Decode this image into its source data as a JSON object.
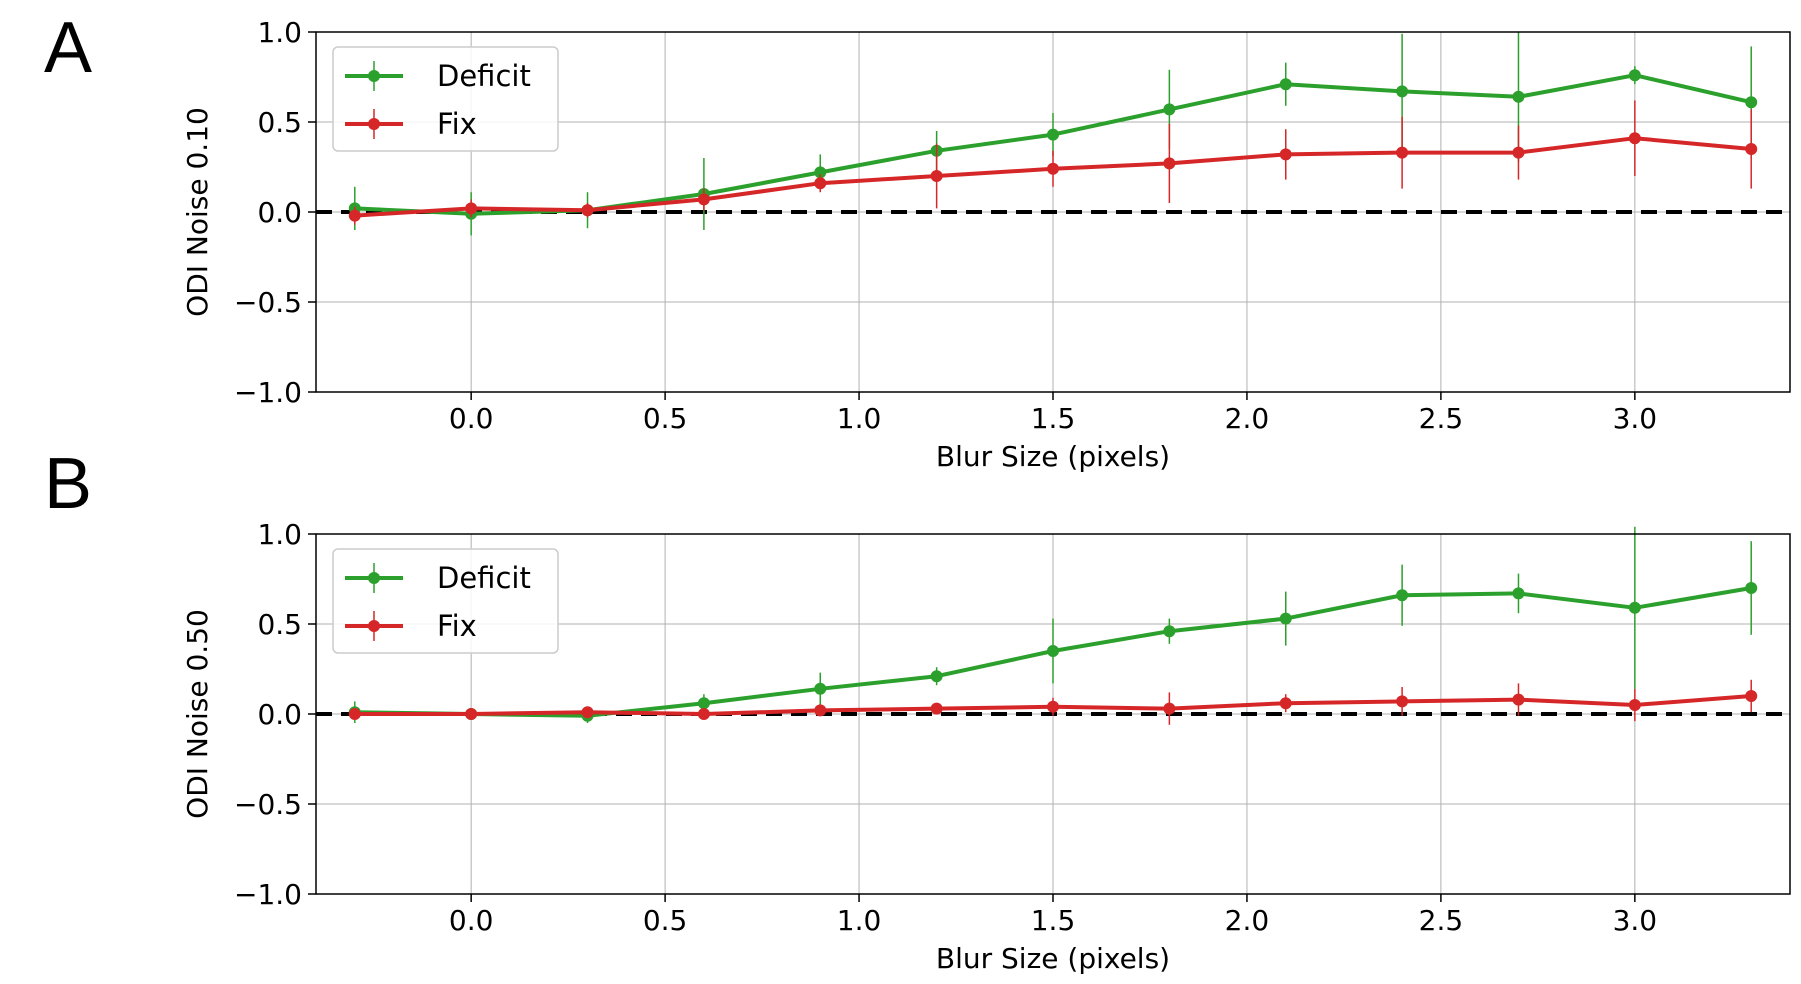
{
  "colors": {
    "deficit": "#2ca02c",
    "fix": "#d62728",
    "grid": "#b0b0b0",
    "zero_line": "#000000"
  },
  "chart_data": [
    {
      "panel_label": "A",
      "type": "line",
      "xlabel": "Blur Size (pixels)",
      "ylabel": "ODI Noise 0.10",
      "xlim": [
        -0.4,
        3.4
      ],
      "ylim": [
        -1.0,
        1.0
      ],
      "xticks": [
        0.0,
        0.5,
        1.0,
        1.5,
        2.0,
        2.5,
        3.0
      ],
      "xtick_labels": [
        "0.0",
        "0.5",
        "1.0",
        "1.5",
        "2.0",
        "2.5",
        "3.0"
      ],
      "yticks": [
        1.0,
        0.5,
        0.0,
        -0.5,
        -1.0
      ],
      "ytick_labels": [
        "1.0",
        "0.5",
        "0.0",
        "−0.5",
        "−1.0"
      ],
      "grid": true,
      "legend_position": "top-left",
      "reference_line": {
        "y": 0.0,
        "style": "dashed",
        "color": "#000000"
      },
      "x": [
        -0.3,
        0.0,
        0.3,
        0.6,
        0.9,
        1.2,
        1.5,
        1.8,
        2.1,
        2.4,
        2.7,
        3.0,
        3.3
      ],
      "series": [
        {
          "name": "Deficit",
          "color": "#2ca02c",
          "values": [
            0.02,
            -0.01,
            0.01,
            0.1,
            0.22,
            0.34,
            0.43,
            0.57,
            0.71,
            0.67,
            0.64,
            0.76,
            0.61
          ],
          "errors": [
            0.12,
            0.12,
            0.1,
            0.2,
            0.1,
            0.11,
            0.12,
            0.22,
            0.12,
            0.32,
            0.36,
            0.05,
            0.31
          ]
        },
        {
          "name": "Fix",
          "color": "#d62728",
          "values": [
            -0.02,
            0.02,
            0.01,
            0.07,
            0.16,
            0.2,
            0.24,
            0.27,
            0.32,
            0.33,
            0.33,
            0.41,
            0.35
          ],
          "errors": [
            0.05,
            0.05,
            0.04,
            0.06,
            0.05,
            0.18,
            0.1,
            0.22,
            0.14,
            0.2,
            0.15,
            0.21,
            0.22
          ]
        }
      ]
    },
    {
      "panel_label": "B",
      "type": "line",
      "xlabel": "Blur Size (pixels)",
      "ylabel": "ODI Noise 0.50",
      "xlim": [
        -0.4,
        3.4
      ],
      "ylim": [
        -1.0,
        1.0
      ],
      "xticks": [
        0.0,
        0.5,
        1.0,
        1.5,
        2.0,
        2.5,
        3.0
      ],
      "xtick_labels": [
        "0.0",
        "0.5",
        "1.0",
        "1.5",
        "2.0",
        "2.5",
        "3.0"
      ],
      "yticks": [
        1.0,
        0.5,
        0.0,
        -0.5,
        -1.0
      ],
      "ytick_labels": [
        "1.0",
        "0.5",
        "0.0",
        "−0.5",
        "−1.0"
      ],
      "grid": true,
      "legend_position": "top-left",
      "reference_line": {
        "y": 0.0,
        "style": "dashed",
        "color": "#000000"
      },
      "x": [
        -0.3,
        0.0,
        0.3,
        0.6,
        0.9,
        1.2,
        1.5,
        1.8,
        2.1,
        2.4,
        2.7,
        3.0,
        3.3
      ],
      "series": [
        {
          "name": "Deficit",
          "color": "#2ca02c",
          "values": [
            0.01,
            0.0,
            -0.01,
            0.06,
            0.14,
            0.21,
            0.35,
            0.46,
            0.53,
            0.66,
            0.67,
            0.59,
            0.7
          ],
          "errors": [
            0.06,
            0.03,
            0.04,
            0.05,
            0.09,
            0.05,
            0.18,
            0.07,
            0.15,
            0.17,
            0.11,
            0.45,
            0.26
          ]
        },
        {
          "name": "Fix",
          "color": "#d62728",
          "values": [
            0.0,
            0.0,
            0.01,
            0.0,
            0.02,
            0.03,
            0.04,
            0.03,
            0.06,
            0.07,
            0.08,
            0.05,
            0.1
          ],
          "errors": [
            0.03,
            0.02,
            0.02,
            0.03,
            0.03,
            0.03,
            0.05,
            0.09,
            0.05,
            0.08,
            0.09,
            0.09,
            0.09
          ]
        }
      ]
    }
  ]
}
